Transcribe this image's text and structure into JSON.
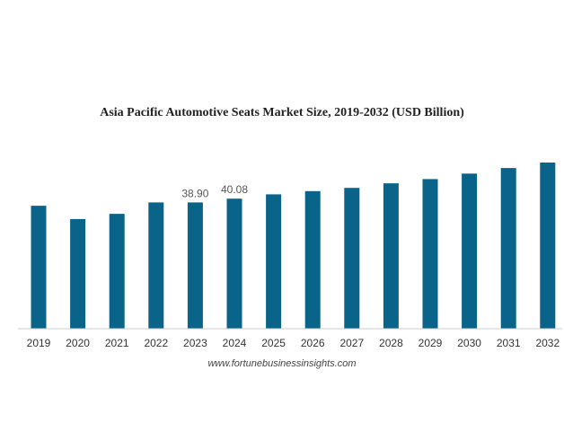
{
  "chart_data": {
    "type": "bar",
    "title": "Asia Pacific Automotive Seats Market Size, 2019-2032 (USD Billion)",
    "xlabel": "",
    "ylabel": "",
    "categories": [
      "2019",
      "2020",
      "2021",
      "2022",
      "2023",
      "2024",
      "2025",
      "2026",
      "2027",
      "2028",
      "2029",
      "2030",
      "2031",
      "2032"
    ],
    "values": [
      37.9,
      33.8,
      35.4,
      38.9,
      38.9,
      40.08,
      41.4,
      42.4,
      43.4,
      44.8,
      46.1,
      47.8,
      49.5,
      51.2
    ],
    "data_labels": [
      {
        "index": 4,
        "text": "38.90"
      },
      {
        "index": 5,
        "text": "40.08"
      }
    ],
    "ylim": [
      0,
      60
    ],
    "grid": false,
    "legend": "none",
    "bar_color": "#0a6489"
  },
  "source": "www.fortunebusinessinsights.com"
}
